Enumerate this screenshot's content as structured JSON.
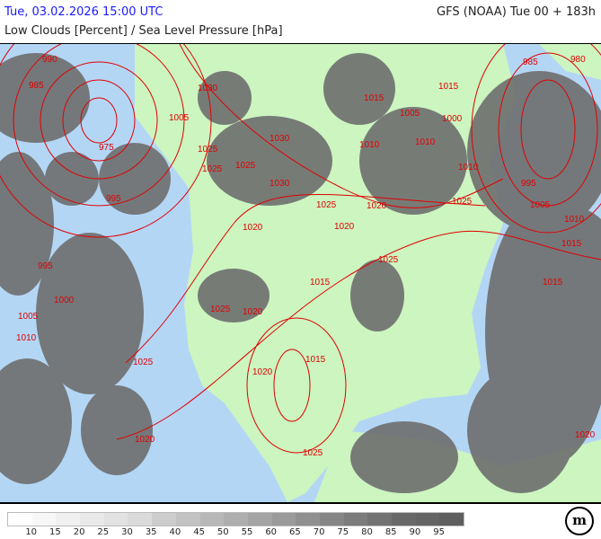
{
  "header": {
    "datetime": "Tue, 03.02.2026 15:00 UTC",
    "model": "GFS (NOAA) Tue 00 + 183h",
    "parameter": "Low Clouds [Percent] / Sea Level Pressure [hPa]"
  },
  "colors": {
    "ocean": "#b4d6f5",
    "land": "#ccf5c0",
    "isobar": "#e00000",
    "date_text": "#1a1aff"
  },
  "isobar_labels": [
    "990",
    "985",
    "975",
    "995",
    "995",
    "1000",
    "1005",
    "1010",
    "1025",
    "1020",
    "1030",
    "1005",
    "1025",
    "1025",
    "1030",
    "1030",
    "1015",
    "1025",
    "1020",
    "1020",
    "1025",
    "1015",
    "1025",
    "1020",
    "1015",
    "1020",
    "1025",
    "1010",
    "1015",
    "1005",
    "1025",
    "1010",
    "1000",
    "1010",
    "1015",
    "1025",
    "985",
    "980",
    "995",
    "1005",
    "1010",
    "1015",
    "1020",
    "1020"
  ],
  "legend": {
    "colors": [
      "#ffffff",
      "#f7f7f7",
      "#f0f0f0",
      "#e9e9e9",
      "#e2e2e2",
      "#dadada",
      "#cccccc",
      "#c2c2c2",
      "#b8b8b8",
      "#aeaeae",
      "#a4a4a4",
      "#9a9a9a",
      "#909090",
      "#868686",
      "#7c7c7c",
      "#727272",
      "#686868",
      "#646464",
      "#5e5e5e"
    ],
    "labels": [
      "10",
      "15",
      "20",
      "25",
      "30",
      "35",
      "40",
      "45",
      "50",
      "55",
      "60",
      "65",
      "70",
      "75",
      "80",
      "85",
      "90",
      "95"
    ]
  },
  "logo": "m"
}
